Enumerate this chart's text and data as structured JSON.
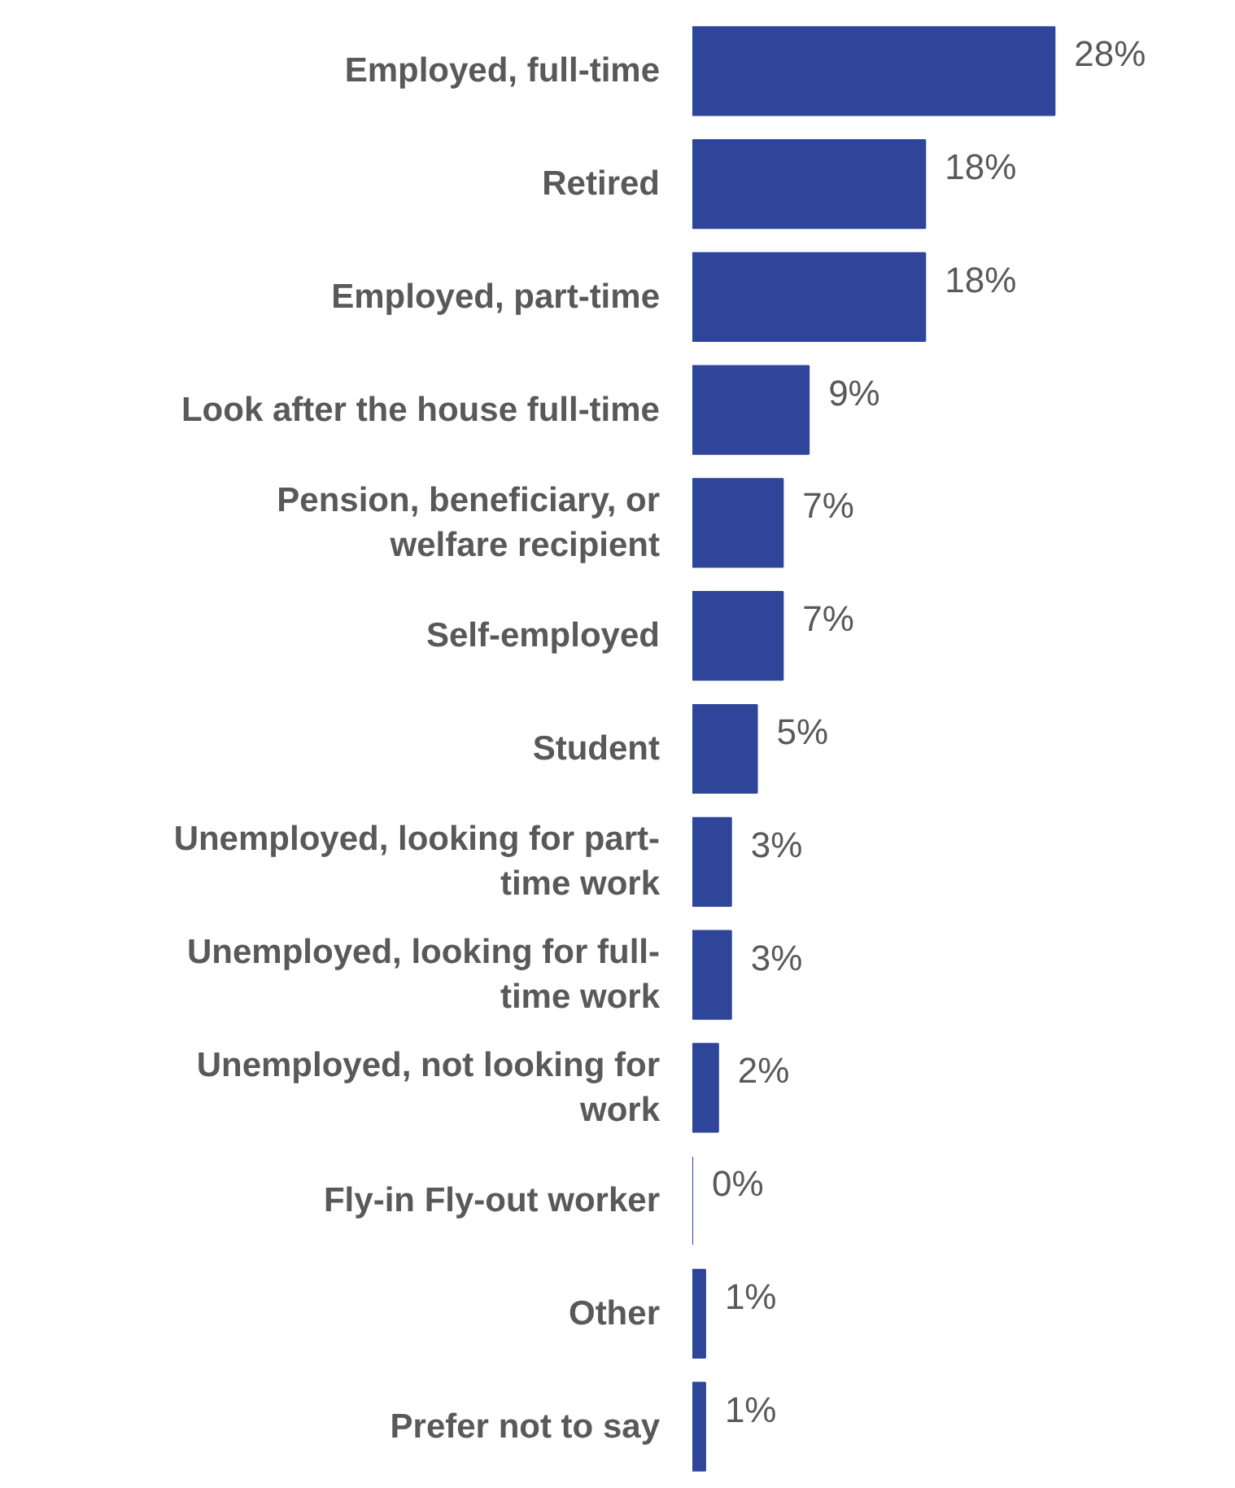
{
  "chart_data": {
    "type": "bar",
    "orientation": "horizontal",
    "categories": [
      "Employed, full-time",
      "Retired",
      "Employed, part-time",
      "Look after the house full-time",
      "Pension, beneficiary, or welfare recipient",
      "Self-employed",
      "Student",
      "Unemployed, looking for part-time work",
      "Unemployed, looking for full-time work",
      "Unemployed, not looking for work",
      "Fly-in Fly-out worker",
      "Other",
      "Prefer not to say"
    ],
    "values": [
      28,
      18,
      18,
      9,
      7,
      7,
      5,
      3,
      3,
      2,
      0,
      1,
      1
    ],
    "value_labels": [
      "28%",
      "18%",
      "18%",
      "9%",
      "7%",
      "7%",
      "5%",
      "3%",
      "3%",
      "2%",
      "0%",
      "1%",
      "1%"
    ],
    "color": "#2e4599"
  }
}
